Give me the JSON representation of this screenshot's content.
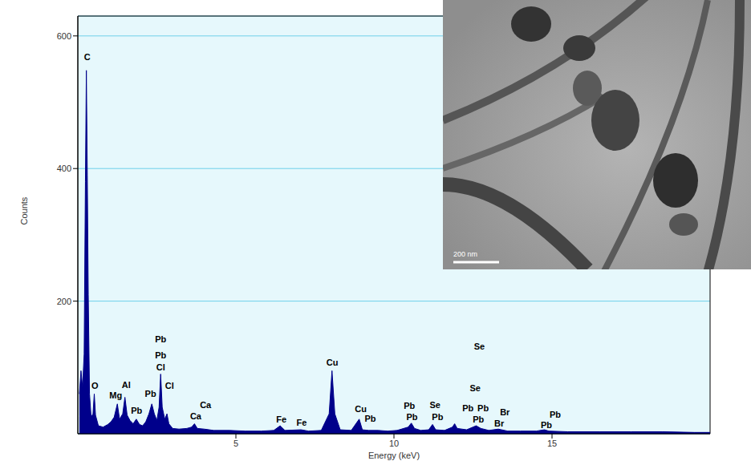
{
  "chart_data": {
    "type": "area",
    "x_label": "Energy (keV)",
    "y_label": "Counts",
    "xlim": [
      0,
      20
    ],
    "xticks": [
      5,
      10,
      15
    ],
    "ylim": [
      0,
      630
    ],
    "yticks": [
      200,
      400,
      600
    ],
    "grid": true,
    "color": "#00008b",
    "x": [
      0.05,
      0.1,
      0.15,
      0.2,
      0.24,
      0.27,
      0.3,
      0.33,
      0.37,
      0.42,
      0.48,
      0.52,
      0.56,
      0.65,
      0.8,
      0.95,
      1.05,
      1.15,
      1.25,
      1.32,
      1.42,
      1.49,
      1.56,
      1.65,
      1.75,
      1.85,
      1.95,
      2.05,
      2.15,
      2.25,
      2.34,
      2.42,
      2.5,
      2.57,
      2.62,
      2.67,
      2.75,
      2.82,
      2.88,
      3.0,
      3.2,
      3.45,
      3.6,
      3.69,
      3.78,
      4.0,
      4.3,
      4.8,
      5.3,
      5.8,
      6.2,
      6.4,
      6.55,
      7.06,
      7.3,
      7.7,
      7.95,
      8.04,
      8.13,
      8.3,
      8.65,
      8.9,
      9.0,
      9.2,
      9.5,
      9.8,
      10.1,
      10.45,
      10.55,
      10.65,
      10.85,
      11.1,
      11.22,
      11.32,
      11.6,
      11.85,
      11.92,
      12.0,
      12.3,
      12.6,
      12.75,
      13.0,
      13.3,
      13.6,
      14.0,
      14.5,
      14.76,
      14.9,
      15.5,
      16.5,
      17.5,
      18.5,
      19.5,
      20
    ],
    "values": [
      60,
      95,
      70,
      120,
      380,
      548,
      390,
      210,
      60,
      25,
      30,
      60,
      28,
      12,
      10,
      14,
      18,
      25,
      45,
      22,
      30,
      55,
      28,
      20,
      15,
      22,
      14,
      12,
      18,
      30,
      45,
      30,
      20,
      40,
      90,
      40,
      22,
      30,
      15,
      8,
      7,
      8,
      10,
      15,
      8,
      7,
      5,
      5,
      4,
      4,
      5,
      12,
      5,
      6,
      4,
      5,
      30,
      95,
      30,
      6,
      5,
      22,
      6,
      5,
      5,
      4,
      5,
      10,
      16,
      8,
      5,
      6,
      14,
      6,
      5,
      10,
      15,
      8,
      6,
      12,
      8,
      5,
      7,
      4,
      4,
      4,
      6,
      4,
      3,
      3,
      3,
      3,
      2,
      2
    ],
    "annotations": [
      {
        "text": "C",
        "x": 0.3,
        "y": 568
      },
      {
        "text": "O",
        "x": 0.54,
        "y": 72
      },
      {
        "text": "Mg",
        "x": 1.2,
        "y": 58
      },
      {
        "text": "Al",
        "x": 1.53,
        "y": 74
      },
      {
        "text": "Pb",
        "x": 1.86,
        "y": 35
      },
      {
        "text": "Pb",
        "x": 2.3,
        "y": 60
      },
      {
        "text": "Cl",
        "x": 2.62,
        "y": 100
      },
      {
        "text": "Pb",
        "x": 2.62,
        "y": 118
      },
      {
        "text": "Pb",
        "x": 2.62,
        "y": 143
      },
      {
        "text": "Cl",
        "x": 2.9,
        "y": 72
      },
      {
        "text": "Ca",
        "x": 3.73,
        "y": 27
      },
      {
        "text": "Ca",
        "x": 4.04,
        "y": 44
      },
      {
        "text": "Fe",
        "x": 6.44,
        "y": 22
      },
      {
        "text": "Fe",
        "x": 7.08,
        "y": 17
      },
      {
        "text": "Cu",
        "x": 8.05,
        "y": 108
      },
      {
        "text": "Cu",
        "x": 8.95,
        "y": 38
      },
      {
        "text": "Pb",
        "x": 9.25,
        "y": 23
      },
      {
        "text": "Pb",
        "x": 10.49,
        "y": 42
      },
      {
        "text": "Pb",
        "x": 10.57,
        "y": 25
      },
      {
        "text": "Se",
        "x": 11.3,
        "y": 44
      },
      {
        "text": "Pb",
        "x": 11.38,
        "y": 25
      },
      {
        "text": "Se",
        "x": 12.7,
        "y": 132
      },
      {
        "text": "Se",
        "x": 12.57,
        "y": 69
      },
      {
        "text": "Pb",
        "x": 12.34,
        "y": 39
      },
      {
        "text": "Pb",
        "x": 12.82,
        "y": 39
      },
      {
        "text": "Pb",
        "x": 12.67,
        "y": 22
      },
      {
        "text": "Br",
        "x": 13.51,
        "y": 33
      },
      {
        "text": "Br",
        "x": 13.33,
        "y": 16
      },
      {
        "text": "Pb",
        "x": 15.1,
        "y": 29
      },
      {
        "text": "Pb",
        "x": 14.82,
        "y": 13
      }
    ]
  },
  "inset": {
    "scale_bar": "200 nm"
  }
}
